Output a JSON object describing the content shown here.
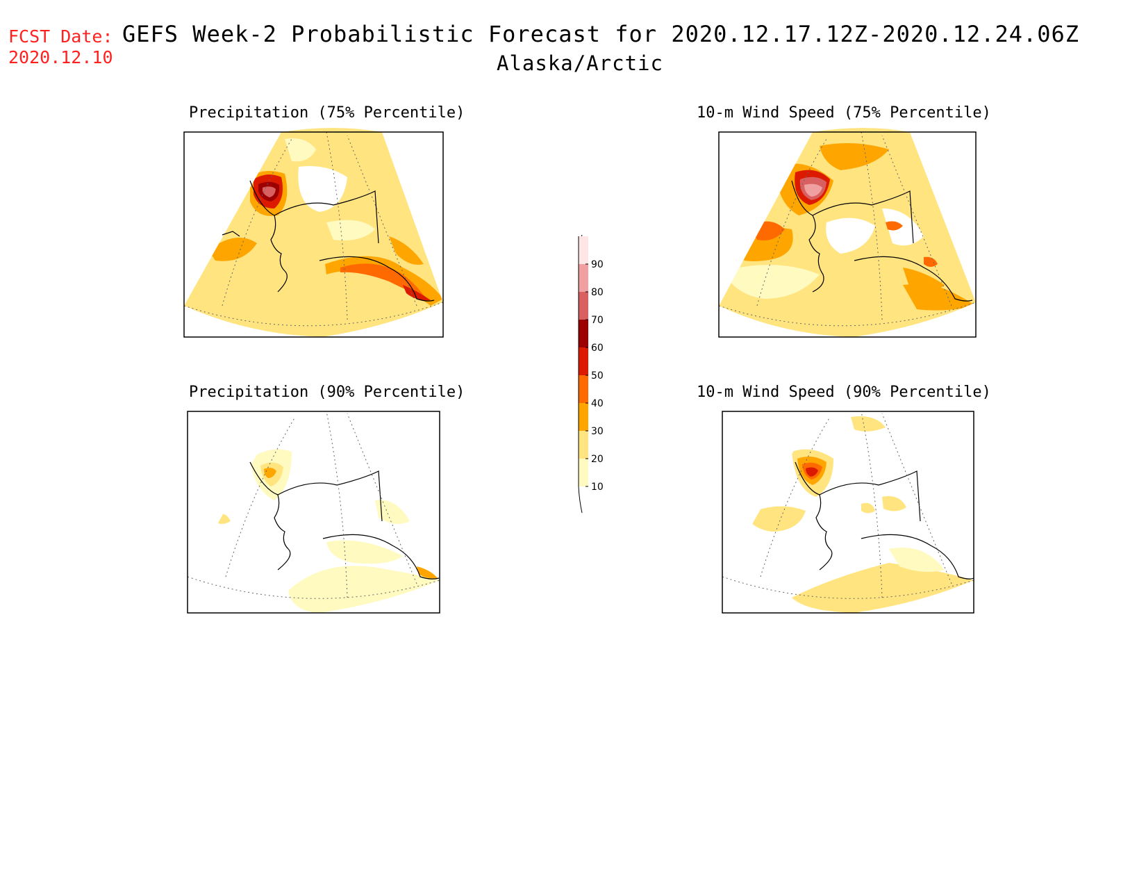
{
  "header": {
    "fcst_label": "FCST Date:",
    "fcst_date": "2020.12.10",
    "title": "GEFS Week-2 Probabilistic Forecast for 2020.12.17.12Z-2020.12.24.06Z",
    "subtitle": "Alaska/Arctic"
  },
  "panels": [
    {
      "id": "precip-75",
      "title": "Precipitation (75% Percentile)"
    },
    {
      "id": "wind-75",
      "title": "10-m Wind Speed (75% Percentile)"
    },
    {
      "id": "precip-90",
      "title": "Precipitation (90% Percentile)"
    },
    {
      "id": "wind-90",
      "title": "10-m Wind Speed (90% Percentile)"
    }
  ],
  "legend": {
    "levels": [
      "10",
      "20",
      "30",
      "40",
      "50",
      "60",
      "70",
      "80",
      "90"
    ],
    "colors": [
      "#fffac0",
      "#ffe480",
      "#ffa500",
      "#ff6a00",
      "#dc1a00",
      "#9c0000",
      "#d86060",
      "#f0a0a0",
      "#ffe6e6"
    ]
  }
}
